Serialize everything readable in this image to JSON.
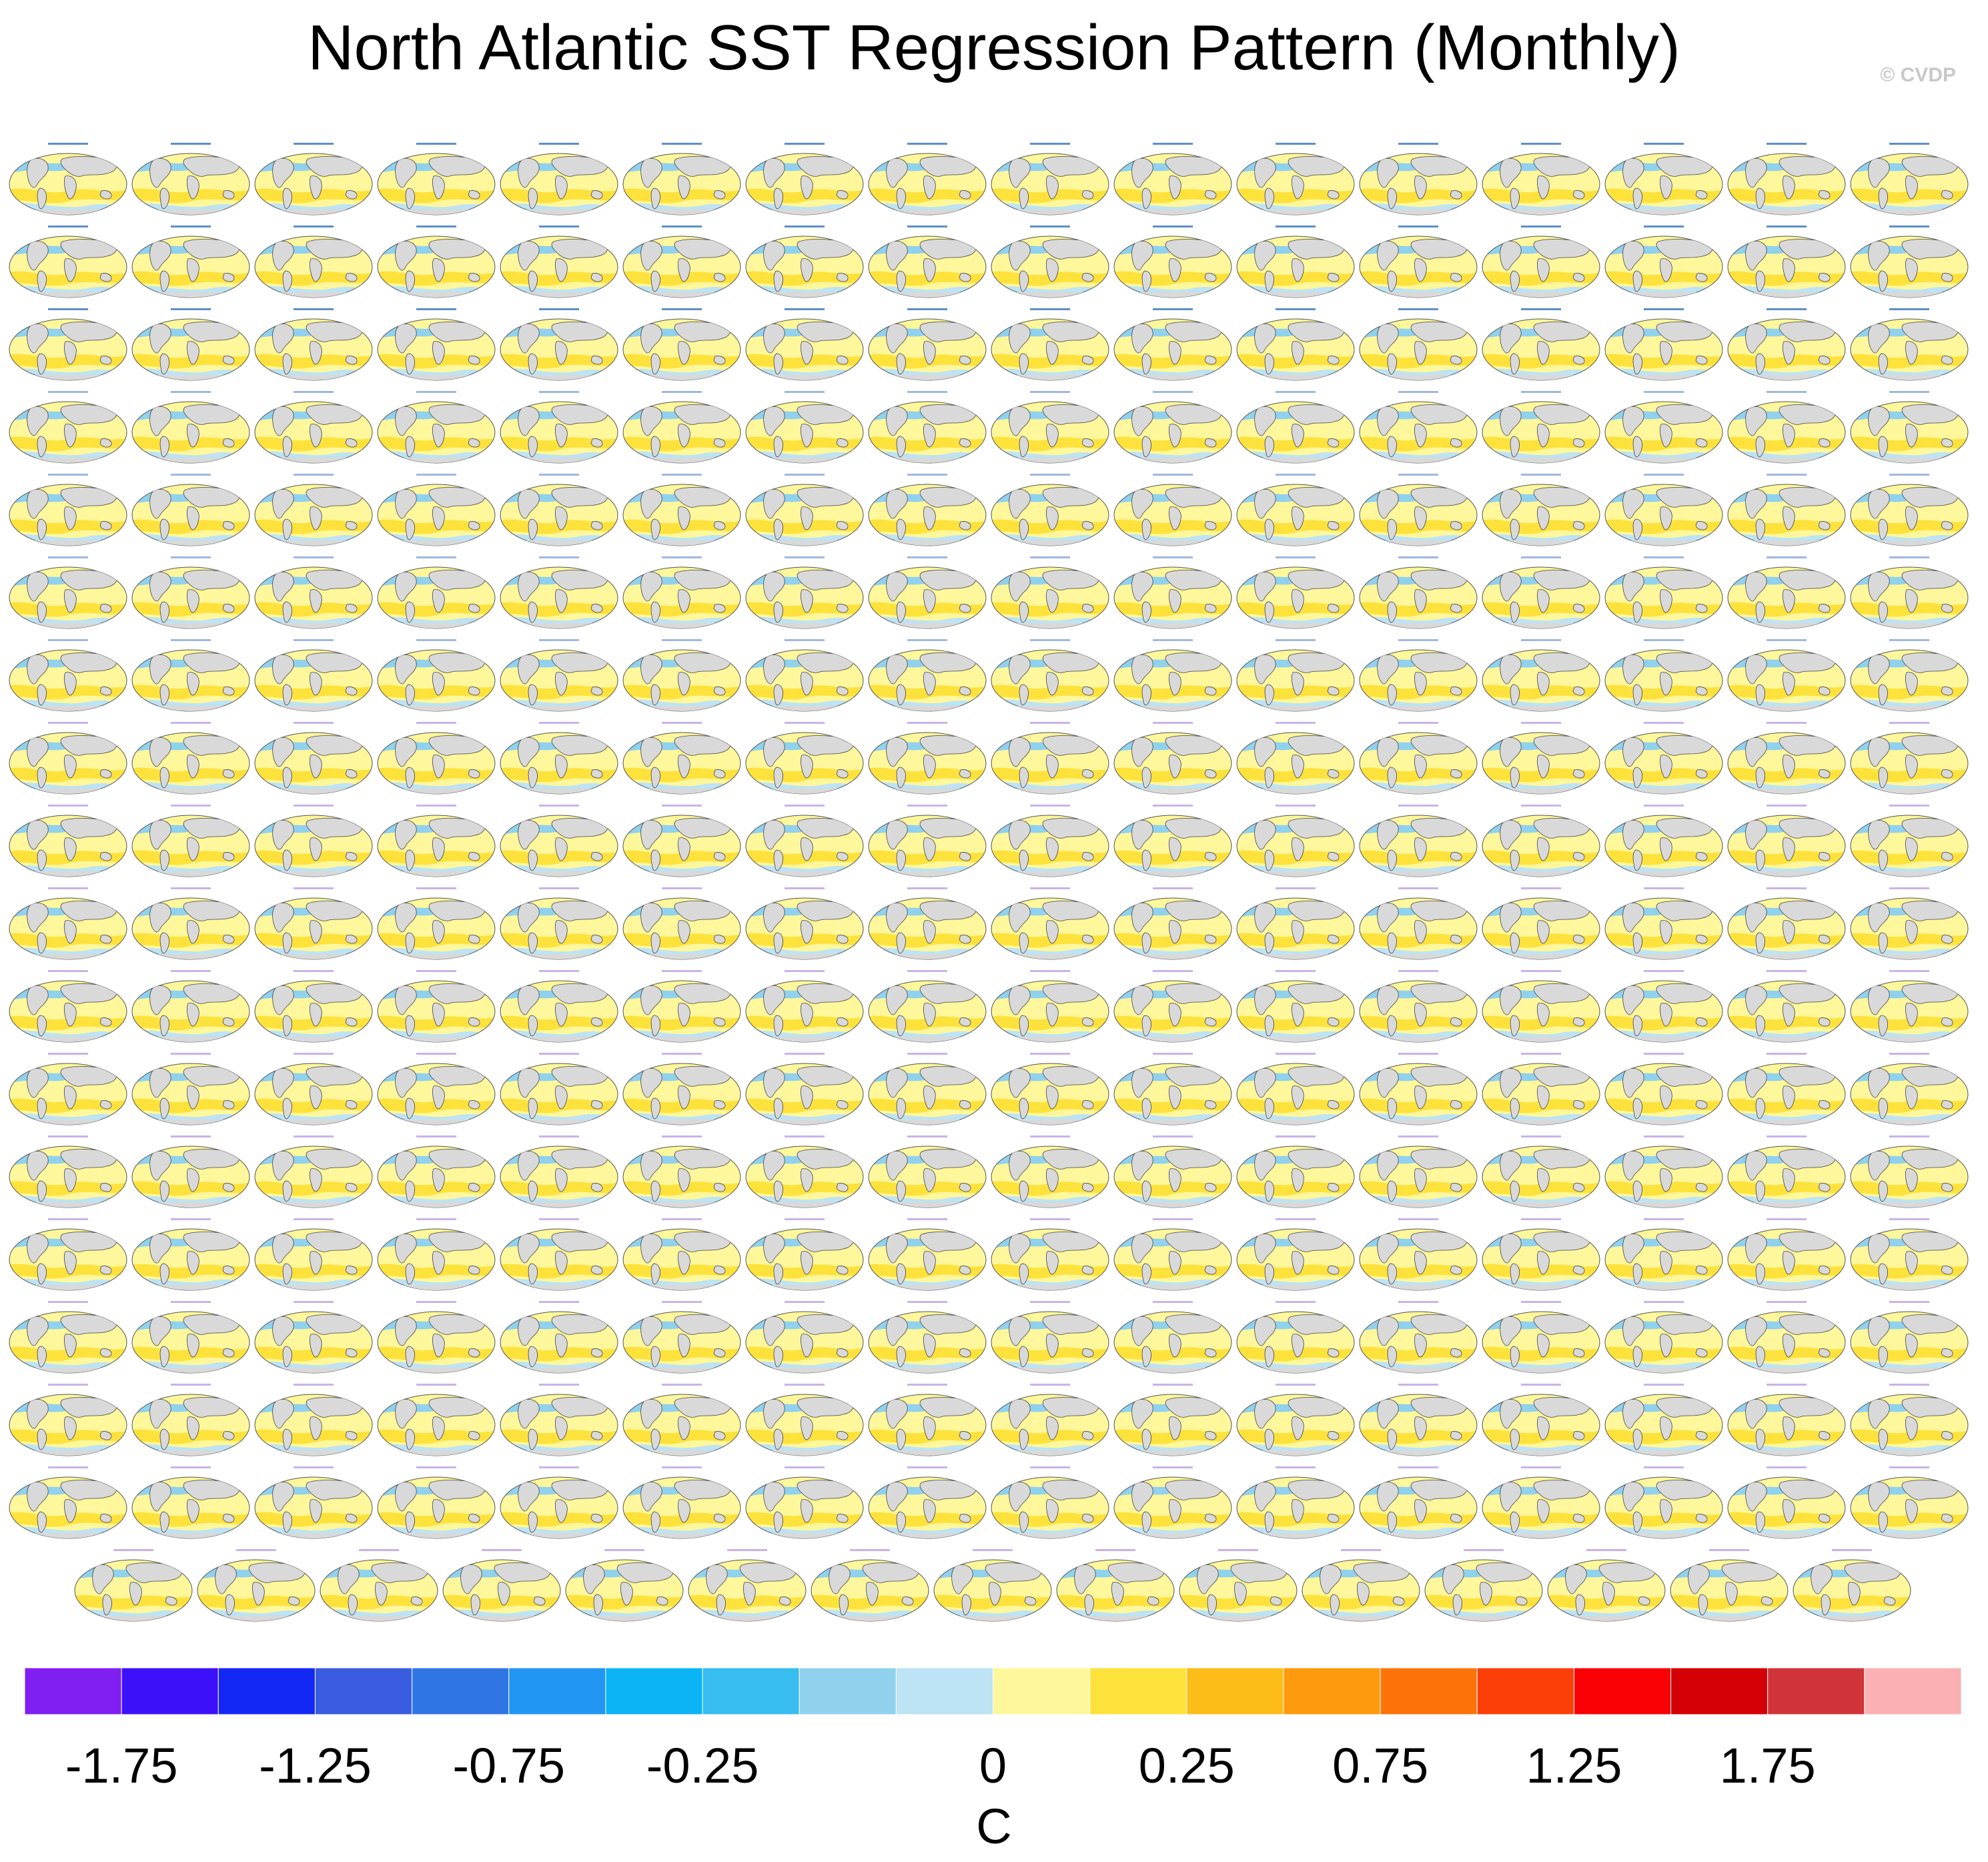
{
  "title": "North Atlantic SST Regression Pattern (Monthly)",
  "credit": "© CVDP",
  "chart_data": {
    "type": "heatmap",
    "title": "North Atlantic SST Regression Pattern (Monthly)",
    "description_of_panels": "Grid of global SST regression maps, 17 rows x 16 columns plus a final row of 15",
    "panel_rows": 18,
    "panels_per_row": [
      16,
      16,
      16,
      16,
      16,
      16,
      16,
      16,
      16,
      16,
      16,
      16,
      16,
      16,
      16,
      16,
      16,
      15
    ],
    "panels": {
      "row0": [
        "ERSST v5",
        "HadISST",
        "ACCESS-ESM1-5 r1i1p1f1",
        "ACCESS-ESM1-5 r2i1p1f1",
        "ACCESS-ESM1-5 r3i1p1f1",
        "ACCESS-ESM1-5 r4i1p1f1",
        "ACCESS-ESM1-5 r5i1p1f1",
        "ACCESS-ESM1-5 r6i1p1f1",
        "ACCESS-ESM1-5 r7i1p1f1",
        "ACCESS-ESM1-5 r8i1p1f1",
        "ACCESS-ESM1-5 r9i1p1f1",
        "ACCESS-ESM1-5 r10i1p1f1",
        "ACCESS-ESM1-5 r11i1p1f1",
        "ACCESS-ESM1-5 r12i1p1f1",
        "ACCESS-ESM1-5 r13i1p1f1",
        "ACCESS-ESM1-5 r14i1p1f1"
      ]
    },
    "colorbar": {
      "colors": [
        "#7f1ff2",
        "#3c10f8",
        "#1428f5",
        "#3a5ce0",
        "#3075e4",
        "#2196f3",
        "#0bb4f5",
        "#38bdf0",
        "#90d1ee",
        "#bde3f4",
        "#fef79b",
        "#fee23c",
        "#fdbc17",
        "#fd9a0d",
        "#fd730a",
        "#fc3f08",
        "#f80004",
        "#d50005",
        "#d13438",
        "#fbb1b3"
      ],
      "labels": [
        "-1.75",
        "-1.25",
        "-0.75",
        "-0.25",
        "0",
        "0.25",
        "0.75",
        "1.25",
        "1.75"
      ],
      "label_positions_index": [
        1,
        3,
        5,
        7,
        10,
        12,
        14,
        16,
        18
      ],
      "unit": "C"
    }
  }
}
